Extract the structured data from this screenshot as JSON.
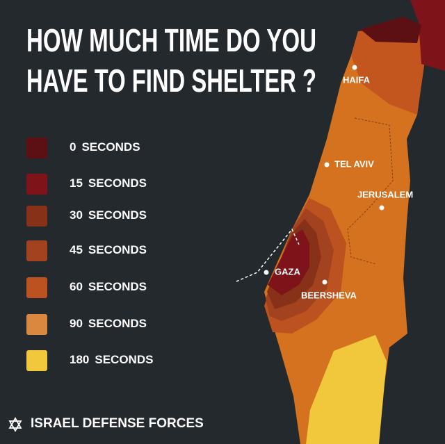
{
  "header": {
    "title": [
      "HOW MUCH TIME DO YOU",
      "HAVE TO FIND SHELTER ?"
    ]
  },
  "legend": [
    {
      "value": 0,
      "unit": "SECONDS",
      "color": "#5c1014"
    },
    {
      "value": 15,
      "unit": "SECONDS",
      "color": "#7e141a"
    },
    {
      "value": 30,
      "unit": "SECONDS",
      "color": "#873118"
    },
    {
      "value": 45,
      "unit": "SECONDS",
      "color": "#a3421f"
    },
    {
      "value": 60,
      "unit": "SECONDS",
      "color": "#bb521f"
    },
    {
      "value": 90,
      "unit": "SECONDS",
      "color": "#da8740"
    },
    {
      "value": 180,
      "unit": "SECONDS",
      "color": "#f1c83b"
    }
  ],
  "cities": [
    "HAIFA",
    "TEL AVIV",
    "JERUSALEM",
    "GAZA",
    "BEERSHEVA"
  ],
  "footer": "ISRAEL DEFENSE FORCES"
}
